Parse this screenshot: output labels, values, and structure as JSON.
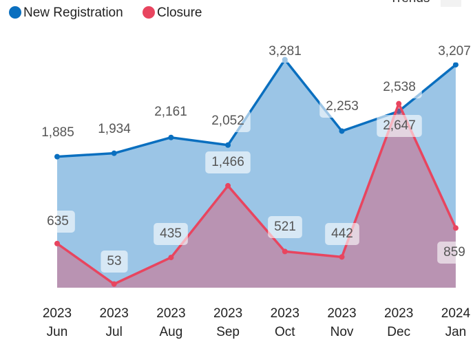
{
  "chart_data": {
    "type": "area",
    "corner_label": "Trends",
    "categories": [
      "2023 Jun",
      "2023 Jul",
      "2023 Aug",
      "2023 Sep",
      "2023 Oct",
      "2023 Nov",
      "2023 Dec",
      "2024 Jan"
    ],
    "series": [
      {
        "name": "New Registration",
        "color": "#0a6fbf",
        "fill": "#9bc5e6",
        "values": [
          1885,
          1934,
          2161,
          2052,
          3281,
          2253,
          2538,
          3207
        ],
        "value_labels": [
          "1,885",
          "1,934",
          "2,161",
          "2,052",
          "3,281",
          "2,253",
          "2,538",
          "3,207"
        ]
      },
      {
        "name": "Closure",
        "color": "#e8455f",
        "fill": "#e8455f",
        "values": [
          635,
          53,
          435,
          1466,
          521,
          442,
          2647,
          859
        ],
        "value_labels": [
          "635",
          "53",
          "435",
          "1,466",
          "521",
          "442",
          "2,647",
          "859"
        ]
      }
    ],
    "ylim": [
      0,
      3300
    ],
    "legend": "top-left"
  }
}
